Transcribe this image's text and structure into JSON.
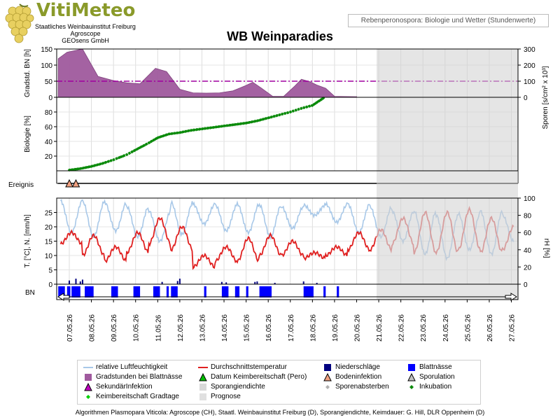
{
  "header": {
    "brand": "VitiMeteo",
    "org_lines": [
      "Staatliches Weinbauinstitut Freiburg",
      "Agroscope",
      "GEOsens GmbH"
    ],
    "subtitle": "Rebenperonospora: Biologie und Wetter (Stundenwerte)"
  },
  "chart_data": {
    "type": "line",
    "title": "WB Weinparadies",
    "x": [
      "07.05.26",
      "08.05.26",
      "09.05.26",
      "10.05.26",
      "11.05.26",
      "12.05.26",
      "13.05.26",
      "14.05.26",
      "15.05.26",
      "16.05.26",
      "17.05.26",
      "18.05.26",
      "19.05.26",
      "20.05.26",
      "21.05.26",
      "22.05.26",
      "23.05.26",
      "24.05.26",
      "25.05.26",
      "26.05.26",
      "27.05.26"
    ],
    "forecast_start": "20.05.26 18:00",
    "panels": [
      {
        "name": "gradstunden",
        "ylabel_left": "Gradstd. BN [h]",
        "ylabel_right": "Sporen [s/cm² x 10³]",
        "ylim_left": [
          0,
          150
        ],
        "yticks_left": [
          "150",
          "100",
          "50",
          "0"
        ],
        "ylim_right": [
          0,
          300
        ],
        "yticks_right": [
          "300",
          "200",
          "100",
          "0"
        ],
        "series": [
          {
            "name": "Gradstunden bei Blattnässe",
            "type": "area",
            "color": "#a05a9e",
            "points": [
              [
                6.5,
                120
              ],
              [
                6.9,
                140
              ],
              [
                7.6,
                150
              ],
              [
                8.3,
                65
              ],
              [
                9.0,
                52
              ],
              [
                9.6,
                45
              ],
              [
                10.2,
                42
              ],
              [
                10.9,
                90
              ],
              [
                11.4,
                80
              ],
              [
                12.0,
                25
              ],
              [
                12.6,
                14
              ],
              [
                13.2,
                13
              ],
              [
                13.8,
                14
              ],
              [
                14.4,
                20
              ],
              [
                15.0,
                37
              ],
              [
                15.3,
                47
              ],
              [
                15.7,
                28
              ],
              [
                16.2,
                3
              ],
              [
                16.7,
                3
              ],
              [
                17.2,
                35
              ],
              [
                17.5,
                56
              ],
              [
                17.9,
                48
              ],
              [
                18.2,
                38
              ],
              [
                18.6,
                28
              ],
              [
                19.0,
                3
              ],
              [
                20.0,
                2
              ]
            ]
          },
          {
            "name": "Sporangiendichte",
            "type": "line",
            "color": "#a000a0",
            "level": 50,
            "dash": "dash-dot"
          }
        ]
      },
      {
        "name": "biologie",
        "ylabel_left": "Biologie [%]",
        "ylim_left": [
          0,
          100
        ],
        "yticks_left": [
          "80",
          "60",
          "40",
          "20"
        ],
        "series": [
          {
            "name": "Inkubation",
            "type": "line",
            "color": "#0a8a0a",
            "points": [
              [
                7.0,
                1
              ],
              [
                7.5,
                3
              ],
              [
                8.0,
                6
              ],
              [
                8.5,
                10
              ],
              [
                9.0,
                15
              ],
              [
                9.6,
                22
              ],
              [
                10.1,
                30
              ],
              [
                10.6,
                38
              ],
              [
                11.0,
                45
              ],
              [
                11.5,
                50
              ],
              [
                12.0,
                52
              ],
              [
                12.5,
                55
              ],
              [
                13.0,
                57
              ],
              [
                13.5,
                59
              ],
              [
                14.0,
                61
              ],
              [
                14.5,
                63
              ],
              [
                15.0,
                65
              ],
              [
                15.5,
                68
              ],
              [
                16.0,
                72
              ],
              [
                16.5,
                76
              ],
              [
                17.0,
                80
              ],
              [
                17.5,
                85
              ],
              [
                18.0,
                89
              ],
              [
                18.3,
                95
              ],
              [
                18.5,
                99
              ]
            ]
          }
        ]
      },
      {
        "name": "ereignis",
        "ylabel_left": "Ereignis",
        "series": [
          {
            "name": "Bodeninfektion",
            "type": "markers",
            "color": "#f0a080",
            "x": [
              7.0,
              7.3
            ]
          }
        ]
      },
      {
        "name": "wetter",
        "ylabel_left": "T. [°C], N. [mm/h]",
        "ylabel_right": "rH [%]",
        "ylim_left": [
          0,
          30
        ],
        "yticks_left": [
          "25",
          "20",
          "15",
          "10",
          "5",
          "0"
        ],
        "ylim_right": [
          0,
          100
        ],
        "yticks_right": [
          "100",
          "80",
          "60",
          "40",
          "20",
          "0"
        ],
        "series": [
          {
            "name": "relative Luftfeuchtigkeit",
            "type": "line",
            "color": "#a8c8e8"
          },
          {
            "name": "Durchschnittstemperatur",
            "type": "line",
            "color": "#e02020"
          },
          {
            "name": "Niederschläge",
            "type": "bar",
            "color": "#000080"
          }
        ]
      },
      {
        "name": "blattnaesse",
        "ylabel_left": "BN",
        "series": [
          {
            "name": "Blattnässe",
            "type": "bar",
            "color": "#0000ff",
            "intervals": [
              [
                6.5,
                6.8
              ],
              [
                6.9,
                7.05
              ],
              [
                7.1,
                7.5
              ],
              [
                7.7,
                8.1
              ],
              [
                8.9,
                9.2
              ],
              [
                9.9,
                10.2
              ],
              [
                10.8,
                11.1
              ],
              [
                11.4,
                11.5
              ],
              [
                11.6,
                11.9
              ],
              [
                13.1,
                13.2
              ],
              [
                13.9,
                14.2
              ],
              [
                14.5,
                14.7
              ],
              [
                15.0,
                15.1
              ],
              [
                15.6,
                16.15
              ],
              [
                17.6,
                18.05
              ],
              [
                18.5,
                18.6
              ],
              [
                19.1,
                19.2
              ]
            ]
          }
        ]
      }
    ],
    "legend": [
      {
        "label": "relative Luftfeuchtigkeit",
        "symbol": "line",
        "color": "#a8c8e8"
      },
      {
        "label": "Durchschnittstemperatur",
        "symbol": "line",
        "color": "#e02020"
      },
      {
        "label": "Niederschläge",
        "symbol": "square",
        "color": "#000080"
      },
      {
        "label": "Blattnässe",
        "symbol": "square",
        "color": "#0000ff"
      },
      {
        "label": "Gradstunden bei Blattnässe",
        "symbol": "square",
        "color": "#a05a9e"
      },
      {
        "label": "Datum Keimbereitschaft (Pero)",
        "symbol": "triangle",
        "color": "#00c000"
      },
      {
        "label": "Bodeninfektion",
        "symbol": "triangle",
        "color": "#f0a080"
      },
      {
        "label": "Sporulation",
        "symbol": "triangle",
        "color": "#c0c0c0"
      },
      {
        "label": "SekundärInfektion",
        "symbol": "triangle",
        "color": "#c000c0"
      },
      {
        "label": "Sporangiendichte",
        "symbol": "square",
        "color": "#d8d8d8"
      },
      {
        "label": "Sporenabsterben",
        "symbol": "diamond",
        "color": "#b0b0b0"
      },
      {
        "label": "Inkubation",
        "symbol": "diamond",
        "color": "#0a8a0a"
      },
      {
        "label": "Keimbereitschaft Gradtage",
        "symbol": "diamond",
        "color": "#00d000"
      },
      {
        "label": "Prognose",
        "symbol": "square",
        "color": "#e0e0e0"
      }
    ]
  },
  "footer": "Algorithmen Plasmopara Viticola: Agroscope (CH), Staatl. Weinbauinstitut Freiburg (D), Sporangiendichte, Keimdauer: G. Hill, DLR Oppenheim (D)"
}
